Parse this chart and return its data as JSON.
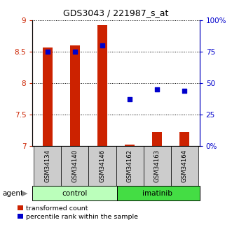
{
  "title": "GDS3043 / 221987_s_at",
  "samples": [
    "GSM34134",
    "GSM34140",
    "GSM34146",
    "GSM34162",
    "GSM34163",
    "GSM34164"
  ],
  "red_values": [
    8.57,
    8.6,
    8.93,
    7.02,
    7.22,
    7.22
  ],
  "blue_pct": [
    75,
    75,
    80,
    37,
    45,
    44
  ],
  "ylim_left": [
    7.0,
    9.0
  ],
  "ylim_right": [
    0,
    100
  ],
  "yticks_left": [
    7.0,
    7.5,
    8.0,
    8.5,
    9.0
  ],
  "ytick_labels_left": [
    "7",
    "7.5",
    "8",
    "8.5",
    "9"
  ],
  "yticks_right": [
    0,
    25,
    50,
    75,
    100
  ],
  "ytick_labels_right": [
    "0%",
    "25",
    "50",
    "75",
    "100%"
  ],
  "bar_color": "#cc2200",
  "dot_color": "#0000cc",
  "bar_bottom": 7.0,
  "control_color": "#bbffbb",
  "imatinib_color": "#44dd44",
  "sample_bg_color": "#cccccc",
  "left_tick_color": "#cc2200",
  "right_tick_color": "#0000cc",
  "bar_width": 0.35,
  "dot_size": 22
}
